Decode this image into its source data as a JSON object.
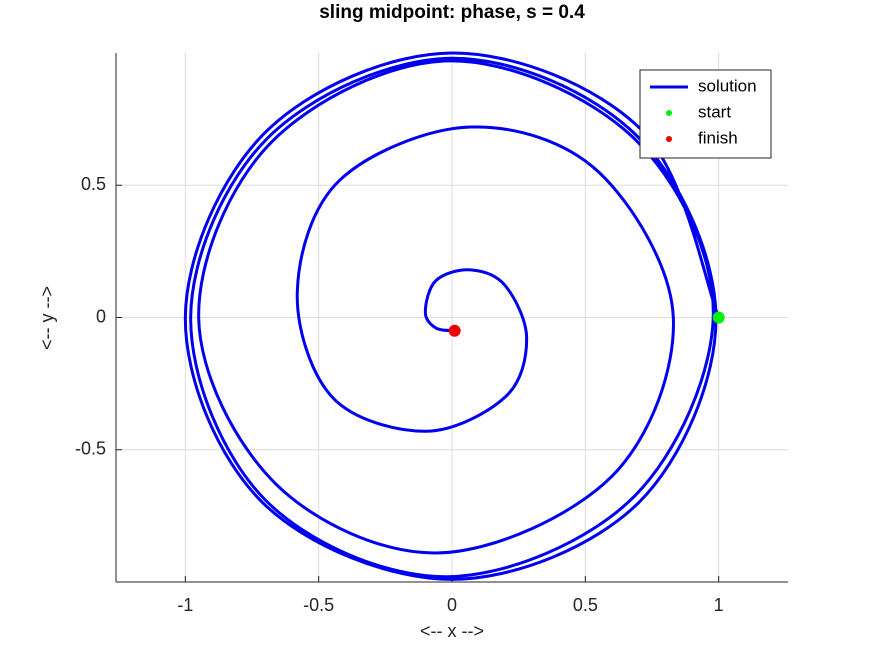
{
  "chart_data": {
    "type": "line",
    "title": "sling midpoint: phase, s = 0.4",
    "xlabel": "<-- x -->",
    "ylabel": "<-- y -->",
    "xlim": [
      -1.26,
      1.26
    ],
    "ylim": [
      -1,
      1
    ],
    "xticks": [
      -1,
      -0.5,
      0,
      0.5,
      1
    ],
    "yticks": [
      -0.5,
      0,
      0.5
    ],
    "grid": true,
    "legend": "northeast",
    "series": [
      {
        "name": "solution",
        "color": "#0000ee",
        "x": [
          1,
          0.71,
          0,
          -0.7,
          -1,
          -0.71,
          0,
          0.7,
          0.99,
          0.69,
          0,
          -0.69,
          -0.98,
          -0.7,
          -0.02,
          0.68,
          0.98,
          0.68,
          -0.01,
          -0.68,
          -0.95,
          -0.66,
          -0.05,
          0.6,
          0.83,
          0.55,
          0.07,
          -0.42,
          -0.58,
          -0.45,
          -0.1,
          0.2,
          0.28,
          0.2,
          0.07,
          -0.06,
          -0.1,
          -0.06,
          0.01
        ],
        "y": [
          0,
          0.71,
          1,
          0.7,
          0,
          -0.7,
          -0.99,
          -0.7,
          0,
          0.69,
          0.98,
          0.68,
          0,
          -0.69,
          -0.98,
          -0.68,
          0.02,
          0.68,
          0.97,
          0.66,
          0,
          -0.63,
          -0.89,
          -0.6,
          0,
          0.55,
          0.72,
          0.52,
          0.1,
          -0.3,
          -0.43,
          -0.3,
          -0.08,
          0.12,
          0.18,
          0.14,
          0.02,
          -0.04,
          -0.05
        ]
      },
      {
        "name": "start",
        "color": "#00ee00",
        "x": [
          1
        ],
        "y": [
          0
        ]
      },
      {
        "name": "finish",
        "color": "#ee0000",
        "x": [
          0.01
        ],
        "y": [
          -0.05
        ]
      }
    ]
  }
}
